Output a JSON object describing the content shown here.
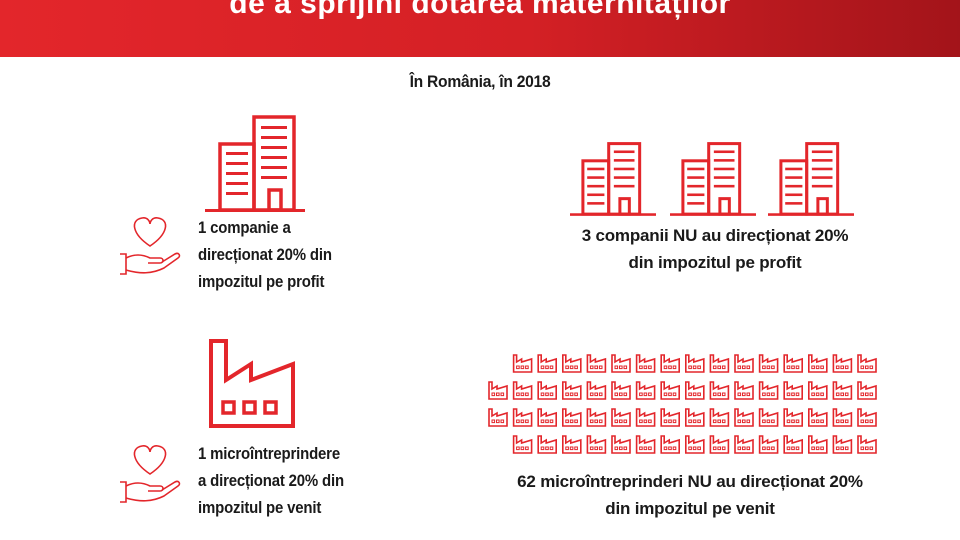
{
  "header": {
    "title": "de a sprijini dotarea maternităților"
  },
  "subtitle": "În România, în 2018",
  "companies_donated": {
    "lines": [
      "1 companie a",
      "direcționat 20% din",
      "impozitul pe profit"
    ],
    "icon": "office-building-icon",
    "gift_icon": "heart-in-hand-icon"
  },
  "companies_not_donated": {
    "lines": [
      "3 companii NU au direcționat 20%",
      "din impozitul pe profit"
    ],
    "icon": "office-building-icon",
    "count": 3
  },
  "micro_donated": {
    "lines": [
      "1 microîntreprindere",
      "a direcționat 20% din",
      "impozitul pe venit"
    ],
    "icon": "factory-icon",
    "gift_icon": "heart-in-hand-icon"
  },
  "micro_not_donated": {
    "lines": [
      "62 microîntreprinderi NU au direcționat 20%",
      "din impozitul pe venit"
    ],
    "icon": "small-factory-icon",
    "count": 62
  },
  "colors": {
    "accent": "#e3262b",
    "text": "#1a1a1a"
  }
}
